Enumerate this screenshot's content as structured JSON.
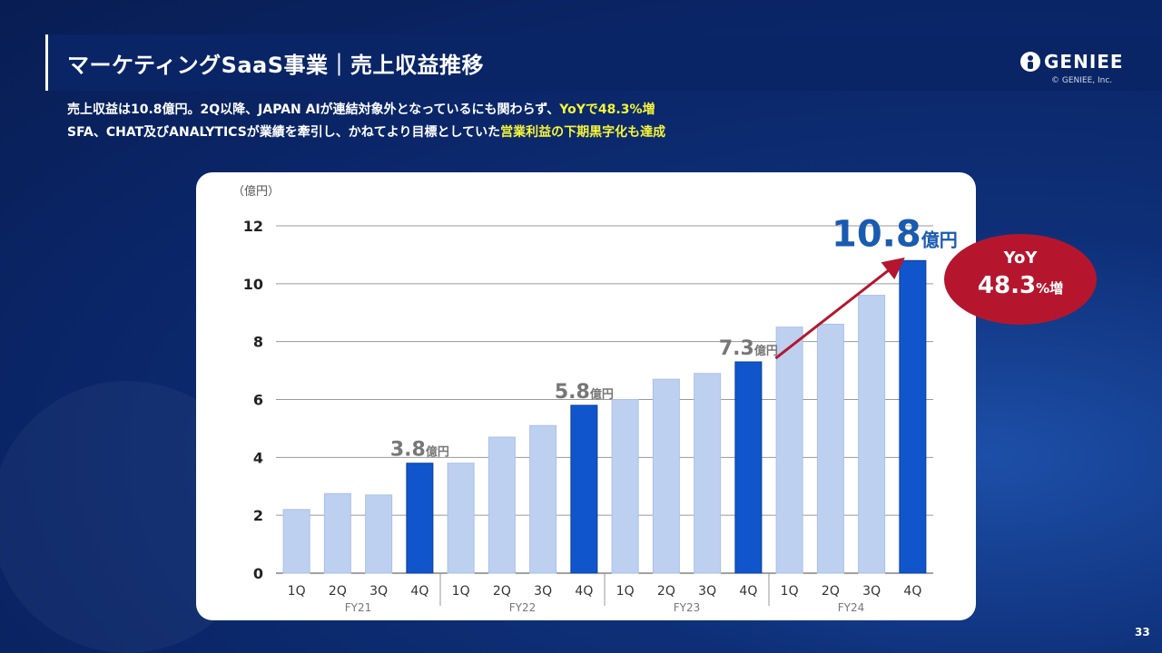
{
  "header": {
    "title": "マーケティングSaaS事業｜売上収益推移",
    "brand": "GENIEE",
    "copyright": "© GENIEE, Inc."
  },
  "subtitle": {
    "line1_plain": "売上収益は10.8億円。2Q以降、JAPAN AIが連結対象外となっているにも関わらず、",
    "line1_highlight": "YoYで48.3%増",
    "line2_plain": "SFA、CHAT及びANALYTICSが業績を牽引し、かねてより目標としていた",
    "line2_highlight": "営業利益の下期黒字化も達成"
  },
  "colors": {
    "highlight": "#f5f53a",
    "bar_light": "#bdd0f0",
    "bar_dark": "#1155cc",
    "yoy_red": "#b5162e",
    "arrow": "#b5162e"
  },
  "chart_data": {
    "type": "bar",
    "ylabel": "（億円）",
    "ylim": [
      0,
      12
    ],
    "yticks": [
      0,
      2,
      4,
      6,
      8,
      10,
      12
    ],
    "grid": true,
    "groups": [
      {
        "label": "FY21",
        "quarters": [
          "1Q",
          "2Q",
          "3Q",
          "4Q"
        ],
        "values": [
          2.2,
          2.75,
          2.7,
          3.8
        ]
      },
      {
        "label": "FY22",
        "quarters": [
          "1Q",
          "2Q",
          "3Q",
          "4Q"
        ],
        "values": [
          3.8,
          4.7,
          5.1,
          5.8
        ]
      },
      {
        "label": "FY23",
        "quarters": [
          "1Q",
          "2Q",
          "3Q",
          "4Q"
        ],
        "values": [
          6.0,
          6.7,
          6.9,
          7.3
        ]
      },
      {
        "label": "FY24",
        "quarters": [
          "1Q",
          "2Q",
          "3Q",
          "4Q"
        ],
        "values": [
          8.5,
          8.6,
          9.6,
          10.8
        ]
      }
    ],
    "annotations": [
      {
        "group": 0,
        "num": "3.8",
        "unit": "億円"
      },
      {
        "group": 1,
        "num": "5.8",
        "unit": "億円"
      },
      {
        "group": 2,
        "num": "7.3",
        "unit": "億円"
      },
      {
        "group": 3,
        "num": "10.8",
        "unit": "億円"
      }
    ]
  },
  "yoy": {
    "label": "YoY",
    "value": "48.3",
    "unit": "%増"
  },
  "page_number": "33"
}
